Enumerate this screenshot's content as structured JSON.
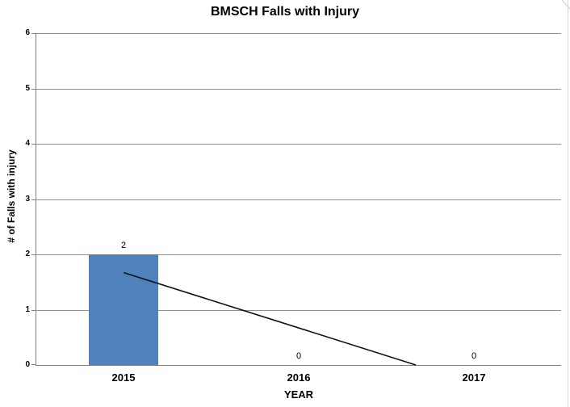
{
  "chart_data": {
    "type": "bar",
    "title": "BMSCH Falls with Injury",
    "xlabel": "YEAR",
    "ylabel": "# of Falls with injury",
    "categories": [
      "2015",
      "2016",
      "2017"
    ],
    "values": [
      2,
      0,
      0
    ],
    "data_labels": [
      "2",
      "0",
      "0"
    ],
    "ylim": [
      0,
      6
    ],
    "yticks": [
      0,
      1,
      2,
      3,
      4,
      5,
      6
    ],
    "grid": true,
    "legend": false,
    "bar_color": "#4f81bd",
    "axis_color": "#808080",
    "gridline_color": "#8f8f8f",
    "text_color": "#000000",
    "trendline": {
      "type": "linear",
      "color": "#111111",
      "start": {
        "category_fraction": 1.0,
        "value": 1.67
      },
      "end": {
        "category_fraction": 2.67,
        "value": 0
      }
    }
  }
}
